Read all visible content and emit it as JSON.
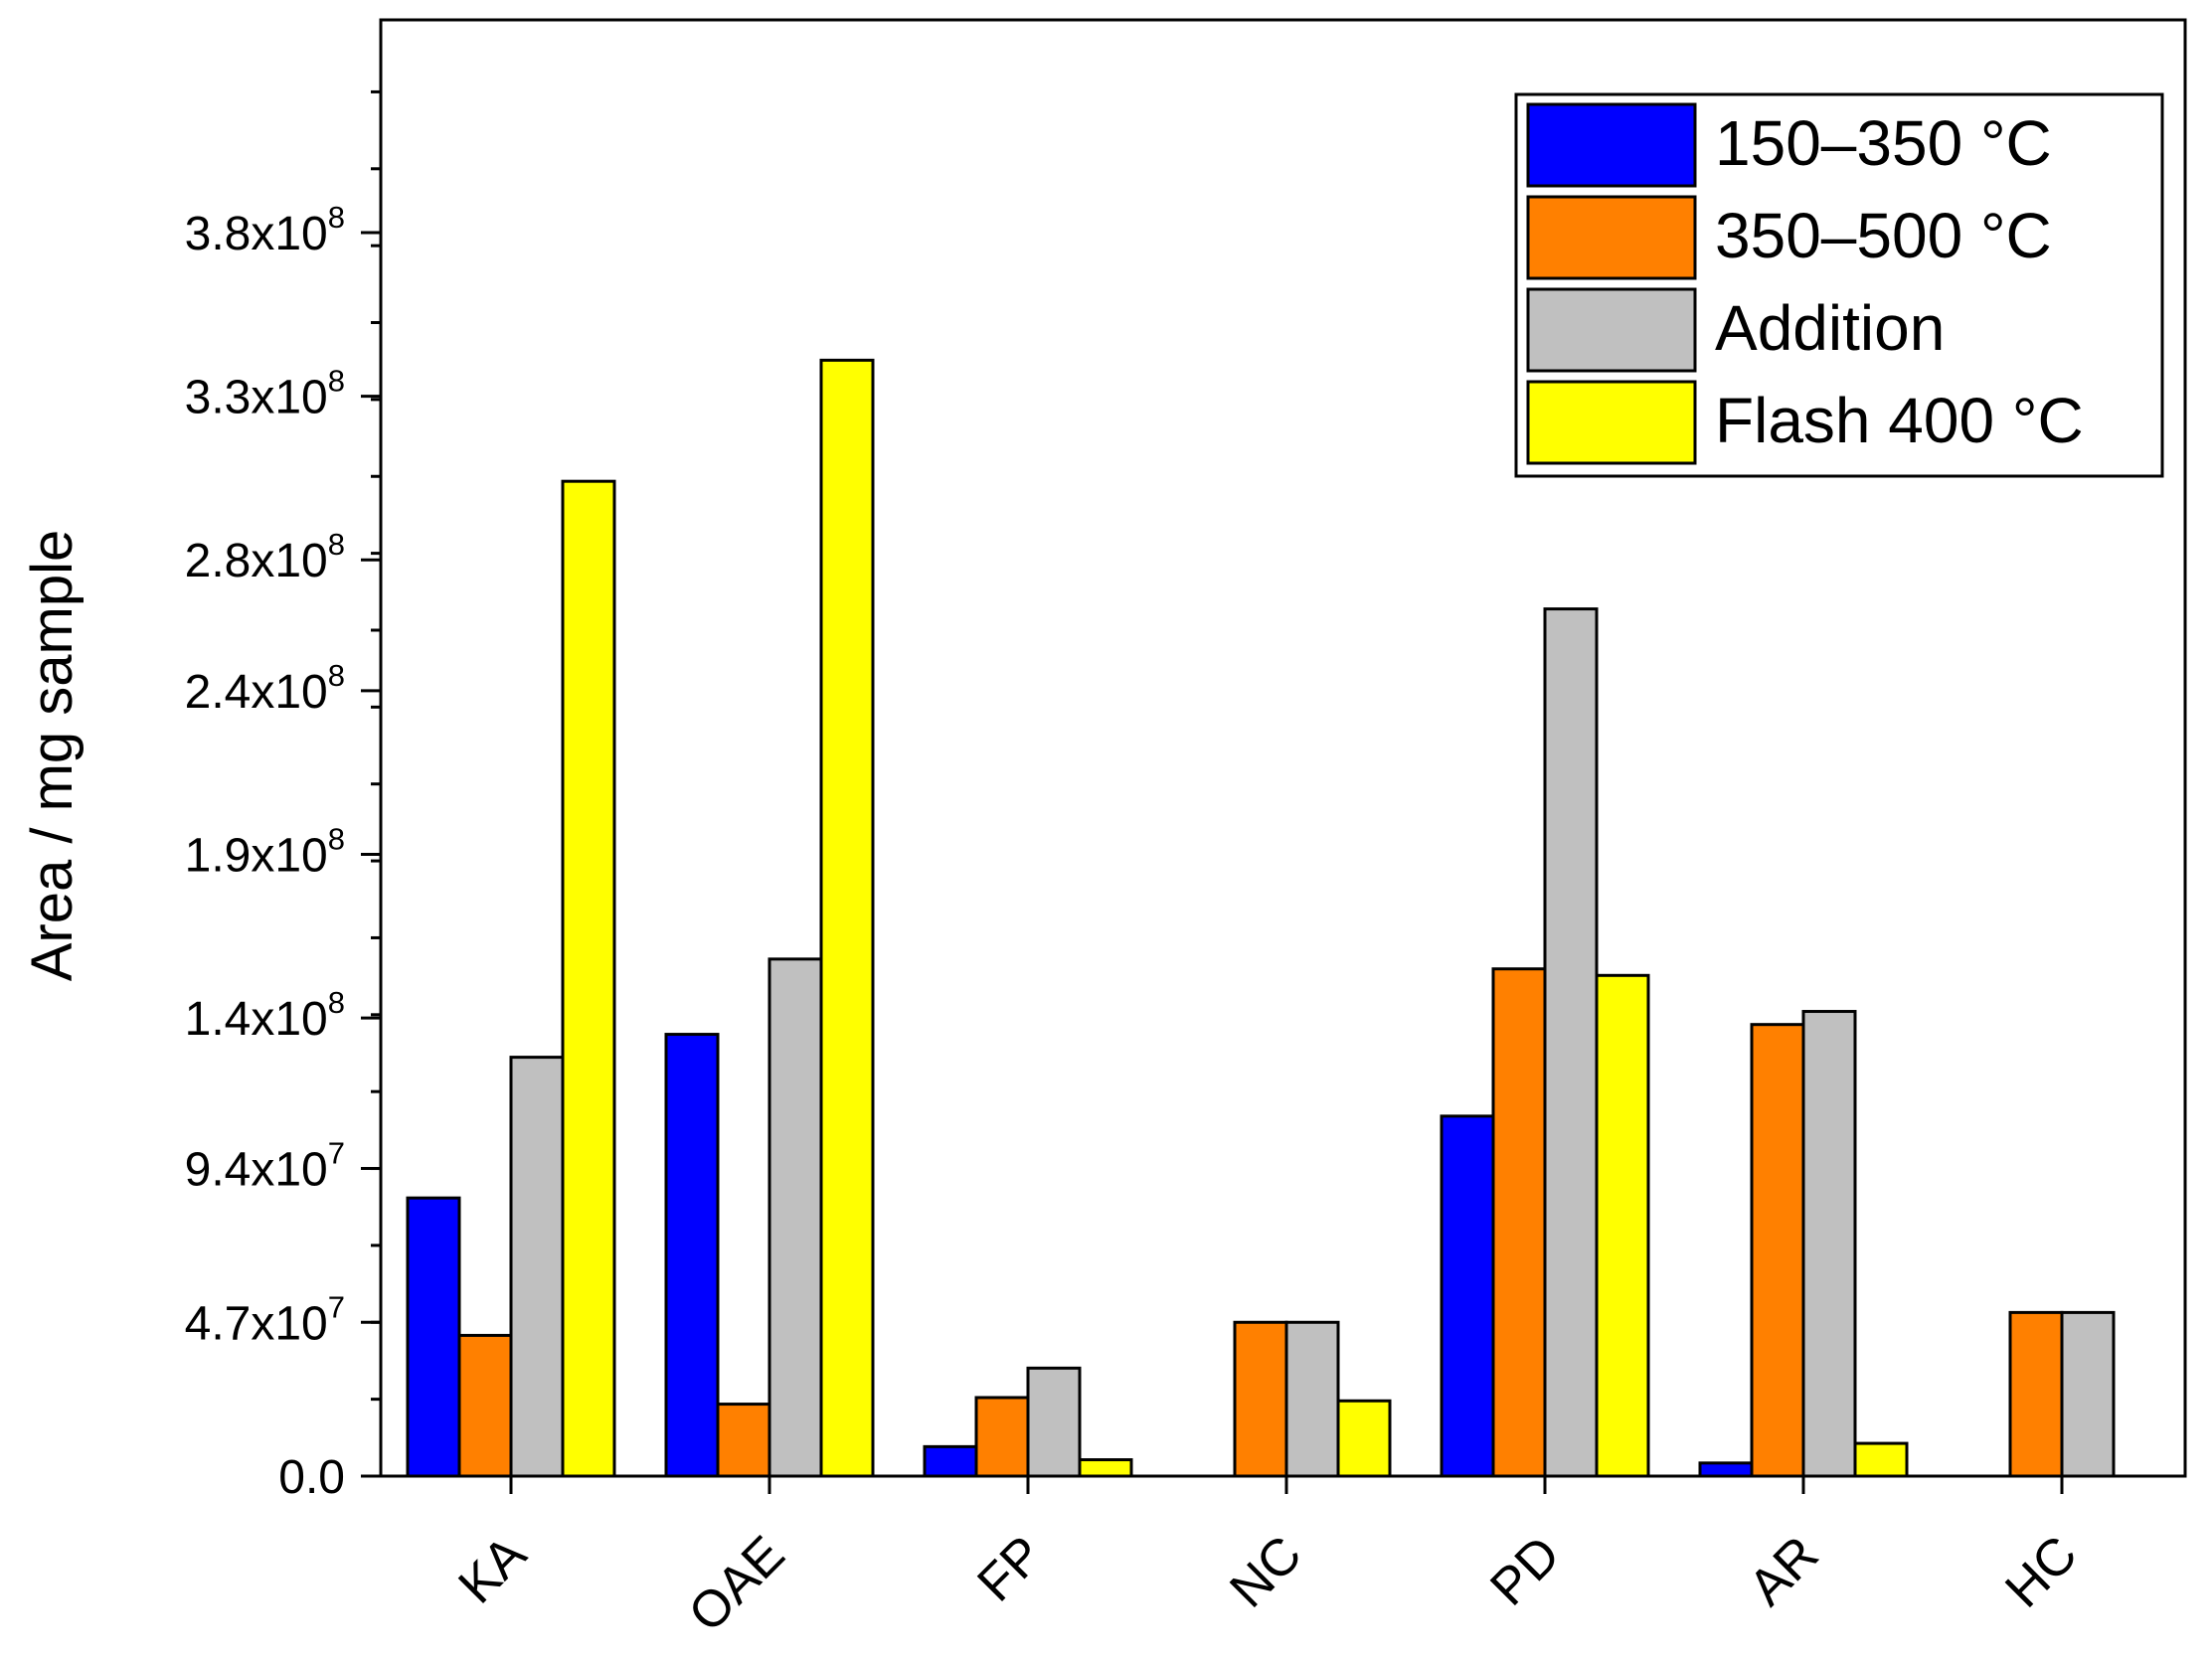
{
  "chart_data": {
    "type": "bar",
    "title": "",
    "xlabel": "",
    "ylabel": "Area / mg sample",
    "categories": [
      "KA",
      "OAE",
      "FP",
      "NC",
      "PD",
      "AR",
      "HC"
    ],
    "ylim": [
      0,
      445000000.0
    ],
    "yticks": [
      {
        "value": 0,
        "label": "0.0",
        "mantissa": "0.0",
        "exp": ""
      },
      {
        "value": 47000000.0,
        "label": "4.7x10^7",
        "mantissa": "4.7x10",
        "exp": "7"
      },
      {
        "value": 94000000.0,
        "label": "9.4x10^7",
        "mantissa": "9.4x10",
        "exp": "7"
      },
      {
        "value": 140000000.0,
        "label": "1.4x10^8",
        "mantissa": "1.4x10",
        "exp": "8"
      },
      {
        "value": 190000000.0,
        "label": "1.9x10^8",
        "mantissa": "1.9x10",
        "exp": "8"
      },
      {
        "value": 240000000.0,
        "label": "2.4x10^8",
        "mantissa": "2.4x10",
        "exp": "8"
      },
      {
        "value": 280000000.0,
        "label": "2.8x10^8",
        "mantissa": "2.8x10",
        "exp": "8"
      },
      {
        "value": 330000000.0,
        "label": "3.3x10^8",
        "mantissa": "3.3x10",
        "exp": "8"
      },
      {
        "value": 380000000.0,
        "label": "3.8x10^8",
        "mantissa": "3.8x10",
        "exp": "8"
      }
    ],
    "grid": false,
    "legend_position": "top-right",
    "series": [
      {
        "name": "150–350 °C",
        "color": "#0000ff",
        "values": [
          85000000.0,
          135000000.0,
          9000000.0,
          0,
          110000000.0,
          4000000.0,
          0
        ]
      },
      {
        "name": "350–500 °C",
        "color": "#ff8000",
        "values": [
          43000000.0,
          22000000.0,
          24000000.0,
          47000000.0,
          155000000.0,
          138000000.0,
          50000000.0
        ]
      },
      {
        "name": "Addition",
        "color": "#c0c0c0",
        "values": [
          128000000.0,
          158000000.0,
          33000000.0,
          47000000.0,
          265000000.0,
          142000000.0,
          50000000.0
        ]
      },
      {
        "name": "Flash 400 °C",
        "color": "#ffff00",
        "values": [
          304000000.0,
          341000000.0,
          5000000.0,
          23000000.0,
          153000000.0,
          10000000.0,
          0
        ]
      }
    ]
  }
}
